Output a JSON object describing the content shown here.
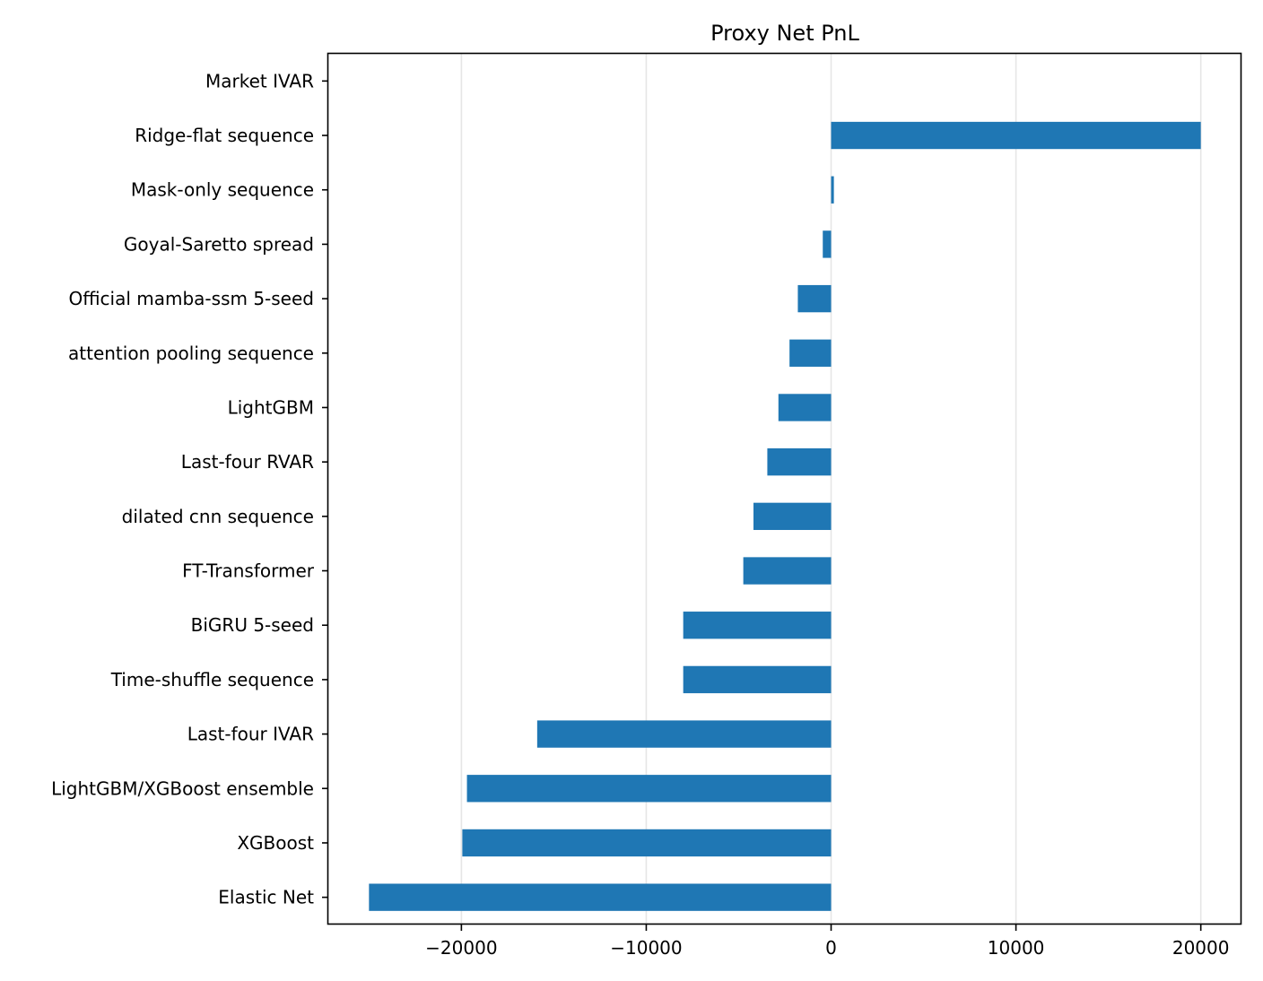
{
  "chart_data": {
    "type": "bar",
    "orientation": "horizontal",
    "title": "Proxy Net PnL",
    "xlabel": "",
    "ylabel": "",
    "categories": [
      "Market IVAR",
      "Ridge-flat sequence",
      "Mask-only sequence",
      "Goyal-Saretto spread",
      "Official mamba-ssm 5-seed",
      "attention pooling sequence",
      "LightGBM",
      "Last-four RVAR",
      "dilated cnn sequence",
      "FT-Transformer",
      "BiGRU 5-seed",
      "Time-shuffle sequence",
      "Last-four IVAR",
      "LightGBM/XGBoost ensemble",
      "XGBoost",
      "Elastic Net"
    ],
    "values": [
      0,
      20000,
      150,
      -450,
      -1800,
      -2250,
      -2850,
      -3450,
      -4200,
      -4750,
      -8000,
      -8000,
      -15900,
      -19700,
      -19950,
      -25000
    ],
    "xlim": [
      -27200,
      22200
    ],
    "xticks": [
      -20000,
      -10000,
      0,
      10000,
      20000
    ],
    "xtick_labels": [
      "−20000",
      "−10000",
      "0",
      "10000",
      "20000"
    ],
    "grid": "vertical",
    "bar_color": "#1f77b4"
  }
}
